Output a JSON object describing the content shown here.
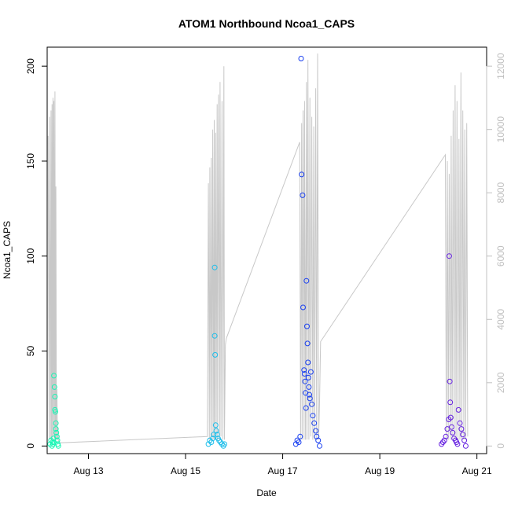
{
  "chart_data": {
    "type": "scatter",
    "title": "ATOM1 Northbound Ncoa1_CAPS",
    "xlabel": "Date",
    "ylabel": "Ncoa1_CAPS",
    "x_ticks": [
      "Aug 13",
      "Aug 15",
      "Aug 17",
      "Aug 19",
      "Aug 21"
    ],
    "x_tick_values": [
      13,
      15,
      17,
      19,
      21
    ],
    "xlim": [
      12.15,
      21.2
    ],
    "y_ticks": [
      0,
      50,
      100,
      150,
      200
    ],
    "ylim": [
      -4,
      210
    ],
    "y2_ticks": [
      0,
      2000,
      4000,
      6000,
      8000,
      10000,
      12000
    ],
    "y2lim": [
      -240,
      12600
    ],
    "grid": false,
    "colors": {
      "day1": "#19f5b4",
      "day2": "#1ebeea",
      "day3": "#1a40f0",
      "day4": "#6520e0",
      "line": "#c8c8c8",
      "right_axis": "#c0c0c0"
    },
    "series": [
      {
        "color_key": "day1",
        "x": [
          12.21,
          12.23,
          12.25,
          12.26,
          12.27,
          12.28,
          12.29,
          12.29,
          12.3,
          12.31,
          12.31,
          12.32,
          12.33,
          12.33,
          12.34,
          12.35,
          12.36,
          12.37,
          12.38
        ],
        "y": [
          1,
          3,
          0,
          2,
          1,
          4,
          2,
          37,
          31,
          26,
          19,
          18,
          12,
          9,
          7,
          5,
          3,
          1,
          0
        ]
      },
      {
        "color_key": "day2",
        "x": [
          15.47,
          15.5,
          15.53,
          15.56,
          15.58,
          15.6,
          15.6,
          15.61,
          15.62,
          15.63,
          15.65,
          15.67,
          15.69,
          15.72,
          15.75,
          15.78,
          15.8
        ],
        "y": [
          1,
          3,
          2,
          4,
          6,
          94,
          58,
          48,
          11,
          8,
          6,
          4,
          3,
          2,
          1,
          0,
          1
        ]
      },
      {
        "color_key": "day3",
        "x": [
          17.27,
          17.3,
          17.33,
          17.36,
          17.38,
          17.39,
          17.41,
          17.42,
          17.44,
          17.45,
          17.46,
          17.47,
          17.48,
          17.49,
          17.5,
          17.51,
          17.52,
          17.53,
          17.54,
          17.55,
          17.56,
          17.58,
          17.6,
          17.62,
          17.65,
          17.68,
          17.7,
          17.73,
          17.76
        ],
        "y": [
          1,
          3,
          2,
          5,
          204,
          143,
          132,
          73,
          40,
          38,
          34,
          28,
          20,
          87,
          63,
          54,
          44,
          36,
          31,
          27,
          25,
          39,
          22,
          16,
          12,
          8,
          5,
          3,
          0
        ]
      },
      {
        "color_key": "day4",
        "x": [
          20.27,
          20.3,
          20.33,
          20.36,
          20.39,
          20.42,
          20.43,
          20.44,
          20.45,
          20.46,
          20.48,
          20.5,
          20.53,
          20.56,
          20.58,
          20.6,
          20.62,
          20.65,
          20.68,
          20.71,
          20.74,
          20.77
        ],
        "y": [
          1,
          2,
          3,
          5,
          9,
          14,
          100,
          34,
          23,
          15,
          10,
          7,
          4,
          3,
          2,
          1,
          19,
          12,
          9,
          6,
          3,
          0
        ]
      }
    ],
    "secondary_line": {
      "x": [
        12.17,
        12.19,
        12.2,
        12.22,
        12.23,
        12.24,
        12.25,
        12.26,
        12.27,
        12.28,
        12.29,
        12.3,
        12.31,
        12.32,
        12.33,
        12.34,
        12.35,
        12.36,
        12.37,
        12.38,
        12.39,
        12.4,
        15.45,
        15.47,
        15.49,
        15.5,
        15.52,
        15.53,
        15.55,
        15.56,
        15.58,
        15.59,
        15.6,
        15.62,
        15.63,
        15.65,
        15.66,
        15.68,
        15.7,
        15.71,
        15.73,
        15.75,
        15.77,
        15.79,
        15.8,
        15.82,
        15.84,
        17.35,
        17.37,
        17.39,
        17.4,
        17.42,
        17.44,
        17.45,
        17.47,
        17.49,
        17.5,
        17.52,
        17.54,
        17.56,
        17.58,
        17.6,
        17.62,
        17.64,
        17.66,
        17.68,
        17.7,
        17.72,
        17.74,
        17.76,
        17.78,
        20.35,
        20.37,
        20.39,
        20.41,
        20.43,
        20.45,
        20.47,
        20.49,
        20.51,
        20.53,
        20.55,
        20.57,
        20.59,
        20.61,
        20.63,
        20.65,
        20.67,
        20.69,
        20.71,
        20.73,
        20.75,
        20.77,
        20.79,
        20.81
      ],
      "y": [
        9800,
        200,
        10400,
        200,
        10600,
        200,
        10800,
        200,
        11000,
        300,
        10900,
        200,
        11200,
        200,
        8200,
        200,
        1800,
        200,
        600,
        200,
        150,
        100,
        300,
        8300,
        200,
        8800,
        200,
        9100,
        200,
        10000,
        200,
        10300,
        200,
        9900,
        200,
        10800,
        200,
        11100,
        200,
        11500,
        300,
        10900,
        200,
        12000,
        200,
        3200,
        3400,
        9600,
        200,
        10200,
        200,
        10600,
        200,
        10900,
        200,
        11500,
        200,
        12200,
        200,
        11000,
        300,
        10400,
        200,
        10100,
        200,
        11300,
        200,
        12400,
        200,
        1400,
        3300,
        9200,
        200,
        9000,
        200,
        8600,
        200,
        9800,
        200,
        10600,
        200,
        11400,
        200,
        10900,
        200,
        9700,
        200,
        11800,
        200,
        10600,
        200,
        10000,
        200,
        10200,
        300
      ]
    }
  }
}
